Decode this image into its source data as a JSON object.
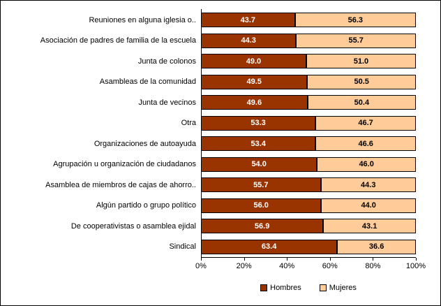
{
  "chart_data": {
    "type": "bar",
    "orientation": "horizontal",
    "stacked": true,
    "title": "",
    "xlabel": "",
    "ylabel": "",
    "xlim": [
      0,
      100
    ],
    "grid": false,
    "legend_position": "bottom",
    "x_ticks": [
      "0%",
      "20%",
      "40%",
      "60%",
      "80%",
      "100%"
    ],
    "categories": [
      "Reuniones en alguna iglesia o..",
      "Asociación de padres de familia de la escuela",
      "Junta de colonos",
      "Asambleas de la comunidad",
      "Junta de vecinos",
      "Otra",
      "Organizaciones de autoayuda",
      "Agrupación u organización de ciudadanos",
      "Asamblea de miembros de cajas de ahorro..",
      "Algún partido o grupo político",
      "De cooperativistas o asamblea ejidal",
      "Sindical"
    ],
    "series": [
      {
        "name": "Hombres",
        "color": "#993300",
        "text_color": "#FFFFFF",
        "values": [
          43.7,
          44.3,
          49.0,
          49.5,
          49.6,
          53.3,
          53.4,
          54.0,
          55.7,
          56.0,
          56.9,
          63.4
        ]
      },
      {
        "name": "Mujeres",
        "color": "#FFCC99",
        "text_color": "#000000",
        "values": [
          56.3,
          55.7,
          51.0,
          50.5,
          50.4,
          46.7,
          46.6,
          46.0,
          44.3,
          44.0,
          43.1,
          36.6
        ]
      }
    ]
  }
}
